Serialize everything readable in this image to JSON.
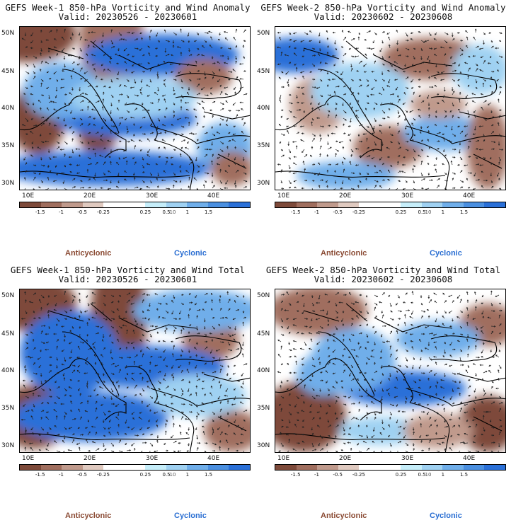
{
  "colors": {
    "bin_colors": [
      "#7e4a3a",
      "#a06e5e",
      "#c09a8c",
      "#e0cac0",
      "#ffffff",
      "#ffffff",
      "#c6eefa",
      "#9fd1f2",
      "#6faeea",
      "#4a8fe0",
      "#2a70d8"
    ],
    "anticyclonic": "#8a4a33",
    "cyclonic": "#2a6ed2",
    "land_border": "#000000"
  },
  "colorbar": {
    "ticks": [
      "-1.5",
      "-1",
      "-0.5",
      "-0.25",
      "0.25",
      "0.5",
      "1",
      "1.5"
    ],
    "scale_label": "10"
  },
  "axes": {
    "lat_labels": [
      "50N",
      "45N",
      "40N",
      "35N",
      "30N"
    ],
    "lon_labels": [
      "10E",
      "20E",
      "30E",
      "40E"
    ]
  },
  "legend": {
    "anticyclonic": "Anticyclonic",
    "cyclonic": "Cyclonic"
  },
  "panels": [
    {
      "title": "GEFS Week-1 850-hPa Vorticity and Wind Anomaly",
      "valid": "Valid: 20230526 - 20230601",
      "pattern": "w1a"
    },
    {
      "title": "GEFS Week-2 850-hPa Vorticity and Wind Anomaly",
      "valid": "Valid: 20230602 - 20230608",
      "pattern": "w2a"
    },
    {
      "title": "GEFS Week-1 850-hPa Vorticity and Wind Total",
      "valid": "Valid: 20230526 - 20230601",
      "pattern": "w1t"
    },
    {
      "title": "GEFS Week-2 850-hPa Vorticity and Wind Total",
      "valid": "Valid: 20230602 - 20230608",
      "pattern": "w2t"
    }
  ]
}
